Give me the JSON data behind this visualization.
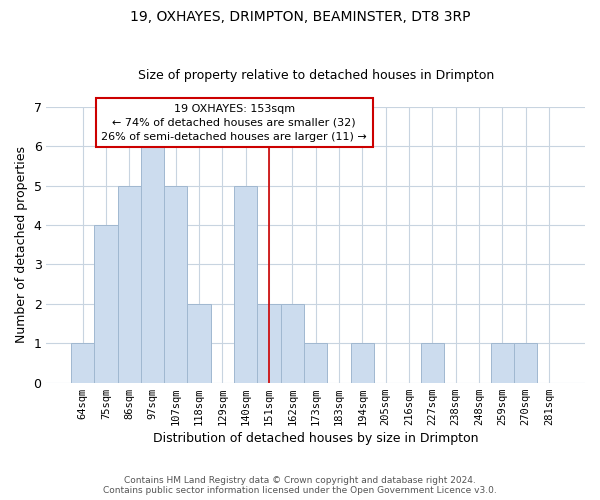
{
  "title": "19, OXHAYES, DRIMPTON, BEAMINSTER, DT8 3RP",
  "subtitle": "Size of property relative to detached houses in Drimpton",
  "xlabel": "Distribution of detached houses by size in Drimpton",
  "ylabel": "Number of detached properties",
  "bin_labels": [
    "64sqm",
    "75sqm",
    "86sqm",
    "97sqm",
    "107sqm",
    "118sqm",
    "129sqm",
    "140sqm",
    "151sqm",
    "162sqm",
    "173sqm",
    "183sqm",
    "194sqm",
    "205sqm",
    "216sqm",
    "227sqm",
    "238sqm",
    "248sqm",
    "259sqm",
    "270sqm",
    "281sqm"
  ],
  "bar_values": [
    1,
    4,
    5,
    6,
    5,
    2,
    0,
    5,
    2,
    2,
    1,
    0,
    1,
    0,
    0,
    1,
    0,
    0,
    1,
    1,
    0
  ],
  "bar_color": "#ccdcee",
  "bar_edge_color": "#a0b8d0",
  "highlight_bar_index": 8,
  "highlight_line_color": "#cc0000",
  "ylim": [
    0,
    7
  ],
  "yticks": [
    0,
    1,
    2,
    3,
    4,
    5,
    6,
    7
  ],
  "annotation_title": "19 OXHAYES: 153sqm",
  "annotation_line1": "← 74% of detached houses are smaller (32)",
  "annotation_line2": "26% of semi-detached houses are larger (11) →",
  "annotation_box_color": "#ffffff",
  "annotation_border_color": "#cc0000",
  "footer_line1": "Contains HM Land Registry data © Crown copyright and database right 2024.",
  "footer_line2": "Contains public sector information licensed under the Open Government Licence v3.0.",
  "background_color": "#ffffff",
  "grid_color": "#c8d4e0"
}
